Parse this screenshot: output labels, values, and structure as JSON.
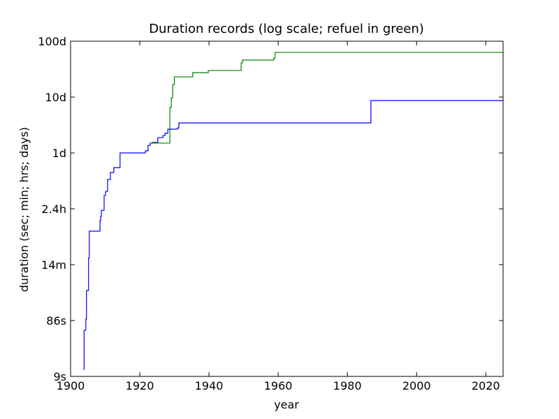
{
  "chart_data": {
    "type": "step",
    "title": "Duration records (log scale; refuel in green)",
    "x_label": "year",
    "y_label": "duration (sec; min; hrs; days)",
    "xlim": [
      1900,
      2025
    ],
    "xticks": [
      1900,
      1920,
      1940,
      1960,
      1980,
      2000,
      2020
    ],
    "ylim": [
      0.0001,
      100
    ],
    "y_scale": "log",
    "yticks": [
      {
        "value": 0.0001,
        "label": "9s"
      },
      {
        "value": 0.001,
        "label": "86s"
      },
      {
        "value": 0.01,
        "label": "14m"
      },
      {
        "value": 0.1,
        "label": "2.4h"
      },
      {
        "value": 1,
        "label": "1d"
      },
      {
        "value": 10,
        "label": "10d"
      },
      {
        "value": 100,
        "label": "100d"
      }
    ],
    "series": [
      {
        "color": "#0000ff",
        "x": [
          1903.8,
          1903.9,
          1904.4,
          1904.6,
          1905.2,
          1905.4,
          1908.5,
          1908.7,
          1908.9,
          1909.7,
          1910.1,
          1910.7,
          1911.5,
          1912.5,
          1914.3,
          1921.6,
          1922.4,
          1923.0,
          1923.6,
          1925.2,
          1926.7,
          1927.3,
          1928.1,
          1930.9,
          1931.3,
          1986.8
        ],
        "values": [
          0.000133,
          0.00067,
          0.00106,
          0.00345,
          0.0133,
          0.0398,
          0.0613,
          0.073,
          0.094,
          0.173,
          0.205,
          0.335,
          0.447,
          0.546,
          1.0,
          1.09,
          1.37,
          1.5,
          1.54,
          1.88,
          2.05,
          2.24,
          2.66,
          2.8,
          3.45,
          8.66
        ]
      },
      {
        "color": "#008000",
        "x": [
          1923.0,
          1928.7,
          1929.1,
          1929.5,
          1930.0,
          1935.3,
          1939.8,
          1949.3,
          1949.7,
          1958.7,
          1959.1
        ],
        "values": [
          1.5,
          6.5,
          9.7,
          16.8,
          23,
          27.4,
          29.9,
          41,
          46,
          50,
          63
        ]
      }
    ]
  }
}
